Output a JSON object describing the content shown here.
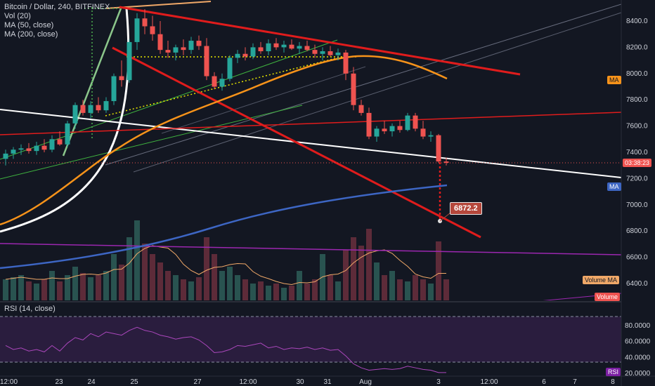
{
  "legend": {
    "title": "Bitcoin / Dollar, 240, BITFINEX",
    "vol": "Vol (20)",
    "ma50": "MA (50, close)",
    "ma200": "MA (200, close)",
    "rsi": "RSI (14, close)"
  },
  "price_axis": [
    "8400.0",
    "8200.0",
    "8000.0",
    "7800.0",
    "7600.0",
    "7400.0",
    "7200.0",
    "7000.0",
    "6800.0",
    "6600.0",
    "6400.0"
  ],
  "rsi_axis": [
    "80.0000",
    "60.0000",
    "40.0000",
    "20.0000"
  ],
  "time_axis": [
    "12:00",
    "23",
    "24",
    "25",
    "27",
    "12:00",
    "30",
    "31",
    "Aug",
    "3",
    "12:00",
    "6",
    "7",
    "8"
  ],
  "tags": {
    "countdown": "03:38:23",
    "ma_orange": "MA",
    "ma_blue": "MA",
    "volume_ma": "Volume MA",
    "volume": "Volume",
    "rsi": "RSI",
    "target": "6872.2"
  },
  "colors": {
    "bg": "#131722",
    "up": "#26a69a",
    "down": "#ef5350",
    "ma50": "#f7931a",
    "ma200": "#3d66c4",
    "red_line": "#e01c1c",
    "rsi": "#9c27b0"
  },
  "chart_data": {
    "type": "candlestick",
    "symbol": "Bitcoin / Dollar",
    "interval": "240",
    "exchange": "BITFINEX",
    "ylim": [
      6300,
      8550
    ],
    "target_price": 6872.2,
    "candles": [
      {
        "o": 7350,
        "h": 7420,
        "l": 7300,
        "c": 7390
      },
      {
        "o": 7390,
        "h": 7440,
        "l": 7350,
        "c": 7420
      },
      {
        "o": 7420,
        "h": 7460,
        "l": 7380,
        "c": 7430
      },
      {
        "o": 7430,
        "h": 7470,
        "l": 7390,
        "c": 7410
      },
      {
        "o": 7410,
        "h": 7480,
        "l": 7380,
        "c": 7450
      },
      {
        "o": 7450,
        "h": 7500,
        "l": 7400,
        "c": 7420
      },
      {
        "o": 7420,
        "h": 7530,
        "l": 7400,
        "c": 7500
      },
      {
        "o": 7500,
        "h": 7560,
        "l": 7450,
        "c": 7460
      },
      {
        "o": 7460,
        "h": 7640,
        "l": 7440,
        "c": 7620
      },
      {
        "o": 7620,
        "h": 7780,
        "l": 7580,
        "c": 7760
      },
      {
        "o": 7760,
        "h": 7800,
        "l": 7680,
        "c": 7700
      },
      {
        "o": 7700,
        "h": 7790,
        "l": 7660,
        "c": 7760
      },
      {
        "o": 7760,
        "h": 7820,
        "l": 7700,
        "c": 7720
      },
      {
        "o": 7720,
        "h": 7820,
        "l": 7700,
        "c": 7790
      },
      {
        "o": 7790,
        "h": 8000,
        "l": 7760,
        "c": 7980
      },
      {
        "o": 7980,
        "h": 8100,
        "l": 7900,
        "c": 7950
      },
      {
        "o": 7950,
        "h": 8260,
        "l": 7930,
        "c": 8240
      },
      {
        "o": 8240,
        "h": 8460,
        "l": 8180,
        "c": 8420
      },
      {
        "o": 8420,
        "h": 8490,
        "l": 8300,
        "c": 8360
      },
      {
        "o": 8360,
        "h": 8440,
        "l": 8250,
        "c": 8300
      },
      {
        "o": 8300,
        "h": 8400,
        "l": 8150,
        "c": 8180
      },
      {
        "o": 8180,
        "h": 8250,
        "l": 8120,
        "c": 8160
      },
      {
        "o": 8160,
        "h": 8220,
        "l": 8100,
        "c": 8200
      },
      {
        "o": 8200,
        "h": 8260,
        "l": 8140,
        "c": 8180
      },
      {
        "o": 8180,
        "h": 8280,
        "l": 8150,
        "c": 8250
      },
      {
        "o": 8250,
        "h": 8290,
        "l": 8180,
        "c": 8210
      },
      {
        "o": 8210,
        "h": 8270,
        "l": 7950,
        "c": 7980
      },
      {
        "o": 7980,
        "h": 8010,
        "l": 7880,
        "c": 7900
      },
      {
        "o": 7900,
        "h": 8000,
        "l": 7870,
        "c": 7960
      },
      {
        "o": 7960,
        "h": 8140,
        "l": 7940,
        "c": 8120
      },
      {
        "o": 8120,
        "h": 8180,
        "l": 8080,
        "c": 8150
      },
      {
        "o": 8150,
        "h": 8200,
        "l": 8100,
        "c": 8130
      },
      {
        "o": 8130,
        "h": 8230,
        "l": 8110,
        "c": 8200
      },
      {
        "o": 8200,
        "h": 8240,
        "l": 8150,
        "c": 8170
      },
      {
        "o": 8170,
        "h": 8260,
        "l": 8140,
        "c": 8230
      },
      {
        "o": 8230,
        "h": 8270,
        "l": 8180,
        "c": 8200
      },
      {
        "o": 8200,
        "h": 8250,
        "l": 8160,
        "c": 8220
      },
      {
        "o": 8220,
        "h": 8260,
        "l": 8180,
        "c": 8190
      },
      {
        "o": 8190,
        "h": 8240,
        "l": 8150,
        "c": 8210
      },
      {
        "o": 8210,
        "h": 8250,
        "l": 8170,
        "c": 8180
      },
      {
        "o": 8180,
        "h": 8220,
        "l": 8120,
        "c": 8150
      },
      {
        "o": 8150,
        "h": 8200,
        "l": 8100,
        "c": 8170
      },
      {
        "o": 8170,
        "h": 8210,
        "l": 8130,
        "c": 8140
      },
      {
        "o": 8140,
        "h": 8190,
        "l": 8100,
        "c": 8160
      },
      {
        "o": 8160,
        "h": 8180,
        "l": 7950,
        "c": 8000
      },
      {
        "o": 8000,
        "h": 8050,
        "l": 7720,
        "c": 7760
      },
      {
        "o": 7760,
        "h": 7800,
        "l": 7680,
        "c": 7700
      },
      {
        "o": 7700,
        "h": 7740,
        "l": 7500,
        "c": 7520
      },
      {
        "o": 7520,
        "h": 7600,
        "l": 7480,
        "c": 7580
      },
      {
        "o": 7580,
        "h": 7640,
        "l": 7540,
        "c": 7560
      },
      {
        "o": 7560,
        "h": 7620,
        "l": 7520,
        "c": 7600
      },
      {
        "o": 7600,
        "h": 7640,
        "l": 7550,
        "c": 7570
      },
      {
        "o": 7570,
        "h": 7700,
        "l": 7560,
        "c": 7680
      },
      {
        "o": 7680,
        "h": 7700,
        "l": 7560,
        "c": 7580
      },
      {
        "o": 7580,
        "h": 7640,
        "l": 7500,
        "c": 7520
      },
      {
        "o": 7520,
        "h": 7560,
        "l": 7480,
        "c": 7530
      },
      {
        "o": 7530,
        "h": 7540,
        "l": 7320,
        "c": 7330
      },
      {
        "o": 7330,
        "h": 7360,
        "l": 7300,
        "c": 7320
      }
    ],
    "volume": [
      10,
      11,
      12,
      9,
      8,
      10,
      14,
      9,
      12,
      16,
      13,
      11,
      12,
      14,
      22,
      17,
      30,
      38,
      27,
      22,
      18,
      14,
      12,
      10,
      9,
      11,
      30,
      22,
      14,
      16,
      12,
      10,
      8,
      9,
      7,
      8,
      6,
      7,
      14,
      8,
      10,
      22,
      12,
      9,
      24,
      30,
      26,
      34,
      18,
      12,
      14,
      10,
      9,
      12,
      10,
      8,
      28,
      10
    ],
    "rsi": [
      55,
      50,
      52,
      48,
      50,
      47,
      55,
      48,
      58,
      65,
      62,
      70,
      66,
      72,
      70,
      68,
      74,
      78,
      74,
      72,
      68,
      66,
      63,
      65,
      66,
      62,
      55,
      46,
      47,
      50,
      55,
      54,
      56,
      58,
      52,
      54,
      50,
      52,
      51,
      53,
      50,
      52,
      49,
      50,
      42,
      32,
      27,
      24,
      25,
      26,
      25,
      26,
      29,
      27,
      25,
      24,
      21,
      21
    ]
  }
}
